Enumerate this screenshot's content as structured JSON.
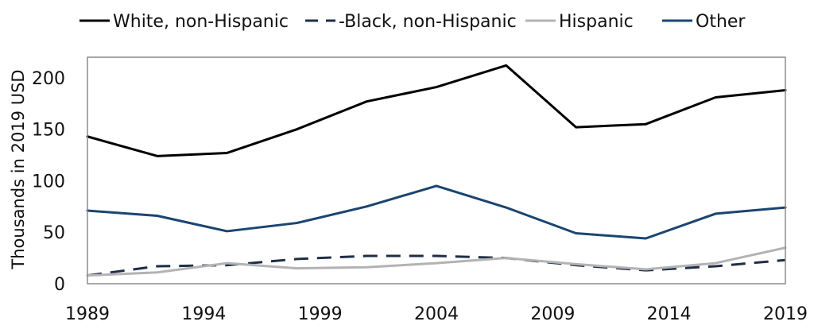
{
  "chart_data": {
    "type": "line",
    "title": "",
    "xlabel": "",
    "ylabel": "Thousands in 2019 USD",
    "xlim": [
      1989,
      2019
    ],
    "ylim": [
      0,
      220
    ],
    "x_ticks": [
      1989,
      1994,
      1999,
      2004,
      2009,
      2014,
      2019
    ],
    "x_tick_labels": [
      "1989",
      "1994",
      "1999",
      "2004",
      "2009",
      "2014",
      "2019"
    ],
    "y_ticks": [
      0,
      50,
      100,
      150,
      200
    ],
    "y_tick_labels": [
      "0",
      "50",
      "100",
      "150",
      "200"
    ],
    "grid": false,
    "legend_position": "top",
    "x": [
      1989,
      1992,
      1995,
      1998,
      2001,
      2004,
      2007,
      2010,
      2013,
      2016,
      2019
    ],
    "series": [
      {
        "name": "White, non-Hispanic",
        "legend_label": "White, non-Hispanic",
        "color": "#000000",
        "dash": "solid",
        "values": [
          143,
          124,
          127,
          150,
          177,
          191,
          212,
          152,
          155,
          181,
          188
        ]
      },
      {
        "name": "Black, non-Hispanic",
        "legend_label": "-Black, non-Hispanic",
        "color": "#1f2e45",
        "dash": "dashed",
        "values": [
          8,
          17,
          18,
          24,
          27,
          27,
          25,
          18,
          13,
          17,
          23
        ]
      },
      {
        "name": "Hispanic",
        "legend_label": "Hispanic",
        "color": "#b3b3b3",
        "dash": "solid",
        "values": [
          8,
          11,
          20,
          15,
          16,
          20,
          25,
          19,
          14,
          20,
          35
        ]
      },
      {
        "name": "Other",
        "legend_label": "Other",
        "color": "#1a4570",
        "dash": "solid",
        "values": [
          71,
          66,
          51,
          59,
          75,
          95,
          74,
          49,
          44,
          68,
          74
        ]
      }
    ]
  }
}
